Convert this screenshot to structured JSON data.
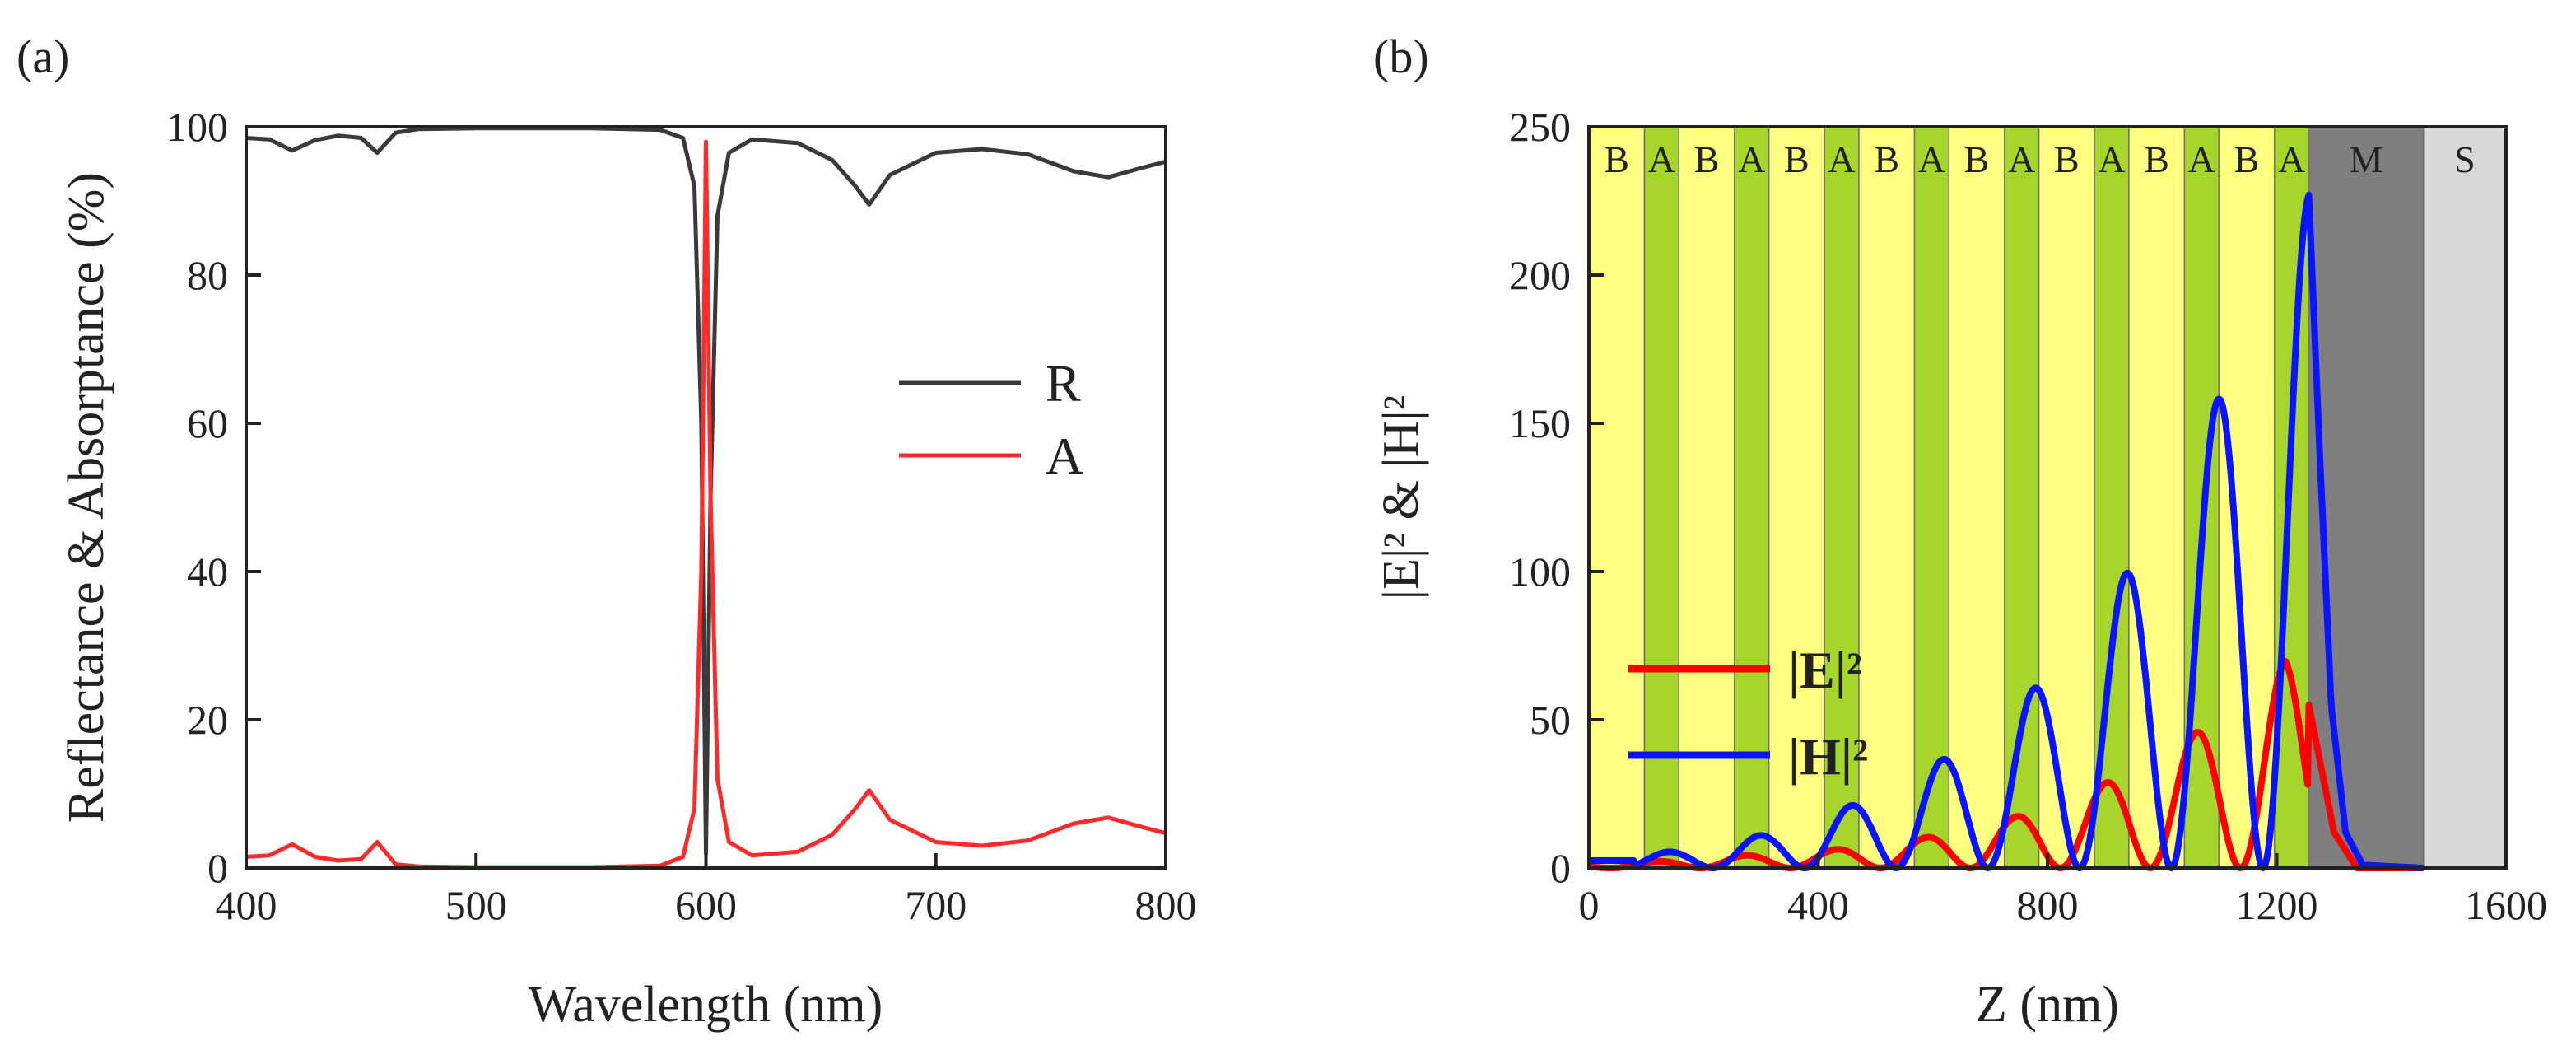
{
  "chart_data": [
    {
      "panel": "(a)",
      "type": "line",
      "xlabel": "Wavelength (nm)",
      "ylabel": "Reflectance & Absorptance (%)",
      "xlim": [
        400,
        800
      ],
      "ylim": [
        0,
        100
      ],
      "xticks": [
        "400",
        "500",
        "600",
        "700",
        "800"
      ],
      "yticks": [
        "0",
        "20",
        "40",
        "60",
        "80",
        "100"
      ],
      "legend_position": "center-right",
      "series": [
        {
          "name": "R",
          "color": "#3a3a3a",
          "x": [
            400,
            410,
            420,
            430,
            440,
            450,
            457,
            465,
            475,
            500,
            550,
            580,
            590,
            595,
            598,
            600,
            602,
            605,
            610,
            620,
            640,
            655,
            665,
            671,
            680,
            700,
            720,
            740,
            760,
            775,
            790,
            800
          ],
          "y": [
            98.5,
            98.3,
            96.8,
            98.2,
            98.8,
            98.5,
            96.5,
            99.2,
            99.7,
            99.8,
            99.8,
            99.6,
            98.5,
            92,
            60,
            2,
            50,
            88,
            96.5,
            98.3,
            97.8,
            95.5,
            92,
            89.5,
            93.5,
            96.5,
            97,
            96.3,
            94,
            93.2,
            94.5,
            95.3
          ]
        },
        {
          "name": "A",
          "color": "#ff2a2a",
          "x": [
            400,
            410,
            420,
            430,
            440,
            450,
            457,
            465,
            475,
            500,
            550,
            580,
            590,
            595,
            598,
            600,
            602,
            605,
            610,
            620,
            640,
            655,
            665,
            671,
            680,
            700,
            720,
            740,
            760,
            775,
            790,
            800
          ],
          "y": [
            1.5,
            1.7,
            3.2,
            1.5,
            1.0,
            1.2,
            3.5,
            0.5,
            0.2,
            0.1,
            0.1,
            0.3,
            1.5,
            8,
            40,
            98,
            50,
            12,
            3.5,
            1.7,
            2.2,
            4.5,
            8.0,
            10.5,
            6.5,
            3.5,
            3.0,
            3.7,
            6.0,
            6.8,
            5.5,
            4.7
          ]
        }
      ]
    },
    {
      "panel": "(b)",
      "type": "line",
      "xlabel": "Z (nm)",
      "ylabel": "|E|² & |H|²",
      "xlim": [
        0,
        1600
      ],
      "ylim": [
        0,
        250
      ],
      "xticks": [
        "0",
        "400",
        "800",
        "1200",
        "1600"
      ],
      "yticks": [
        "0",
        "50",
        "100",
        "150",
        "200",
        "250"
      ],
      "legend_position": "center-left",
      "layers": [
        {
          "label": "B",
          "start": 0,
          "end": 97,
          "color": "#ffff80"
        },
        {
          "label": "A",
          "start": 97,
          "end": 157,
          "color": "#a6d62b"
        },
        {
          "label": "B",
          "start": 157,
          "end": 254,
          "color": "#ffff80"
        },
        {
          "label": "A",
          "start": 254,
          "end": 314,
          "color": "#a6d62b"
        },
        {
          "label": "B",
          "start": 314,
          "end": 411,
          "color": "#ffff80"
        },
        {
          "label": "A",
          "start": 411,
          "end": 471,
          "color": "#a6d62b"
        },
        {
          "label": "B",
          "start": 471,
          "end": 568,
          "color": "#ffff80"
        },
        {
          "label": "A",
          "start": 568,
          "end": 628,
          "color": "#a6d62b"
        },
        {
          "label": "B",
          "start": 628,
          "end": 725,
          "color": "#ffff80"
        },
        {
          "label": "A",
          "start": 725,
          "end": 785,
          "color": "#a6d62b"
        },
        {
          "label": "B",
          "start": 785,
          "end": 882,
          "color": "#ffff80"
        },
        {
          "label": "A",
          "start": 882,
          "end": 942,
          "color": "#a6d62b"
        },
        {
          "label": "B",
          "start": 942,
          "end": 1039,
          "color": "#ffff80"
        },
        {
          "label": "A",
          "start": 1039,
          "end": 1099,
          "color": "#a6d62b"
        },
        {
          "label": "B",
          "start": 1099,
          "end": 1196,
          "color": "#ffff80"
        },
        {
          "label": "A",
          "start": 1196,
          "end": 1256,
          "color": "#a6d62b"
        },
        {
          "label": "M",
          "start": 1256,
          "end": 1456,
          "color": "#7f7f7f"
        },
        {
          "label": "S",
          "start": 1456,
          "end": 1600,
          "color": "#d9d9d9"
        }
      ],
      "series": [
        {
          "name": "|E|²",
          "color": "#ff0000",
          "envelope": [
            {
              "x": 0,
              "y": 1
            },
            {
              "x": 100,
              "y": 2
            },
            {
              "x": 250,
              "y": 4
            },
            {
              "x": 420,
              "y": 6
            },
            {
              "x": 580,
              "y": 10
            },
            {
              "x": 740,
              "y": 17
            },
            {
              "x": 895,
              "y": 28
            },
            {
              "x": 1055,
              "y": 45
            },
            {
              "x": 1215,
              "y": 70
            },
            {
              "x": 1256,
              "y": 55
            },
            {
              "x": 1300,
              "y": 12
            },
            {
              "x": 1340,
              "y": 0
            },
            {
              "x": 1456,
              "y": 0
            }
          ],
          "peaks": [
            {
              "x": 420,
              "y": 6
            },
            {
              "x": 580,
              "y": 10
            },
            {
              "x": 740,
              "y": 17
            },
            {
              "x": 895,
              "y": 28
            },
            {
              "x": 1055,
              "y": 45
            },
            {
              "x": 1215,
              "y": 70
            }
          ]
        },
        {
          "name": "|H|²",
          "color": "#0a14ff",
          "peaks": [
            {
              "x": 0,
              "y": 2.5
            },
            {
              "x": 165,
              "y": 6
            },
            {
              "x": 325,
              "y": 12
            },
            {
              "x": 485,
              "y": 23
            },
            {
              "x": 650,
              "y": 40
            },
            {
              "x": 810,
              "y": 66
            },
            {
              "x": 970,
              "y": 108
            },
            {
              "x": 1130,
              "y": 171
            },
            {
              "x": 1256,
              "y": 227
            }
          ],
          "decay": [
            {
              "x": 1256,
              "y": 227
            },
            {
              "x": 1275,
              "y": 140
            },
            {
              "x": 1295,
              "y": 55
            },
            {
              "x": 1320,
              "y": 12
            },
            {
              "x": 1350,
              "y": 1
            },
            {
              "x": 1456,
              "y": 0
            }
          ]
        }
      ]
    }
  ]
}
